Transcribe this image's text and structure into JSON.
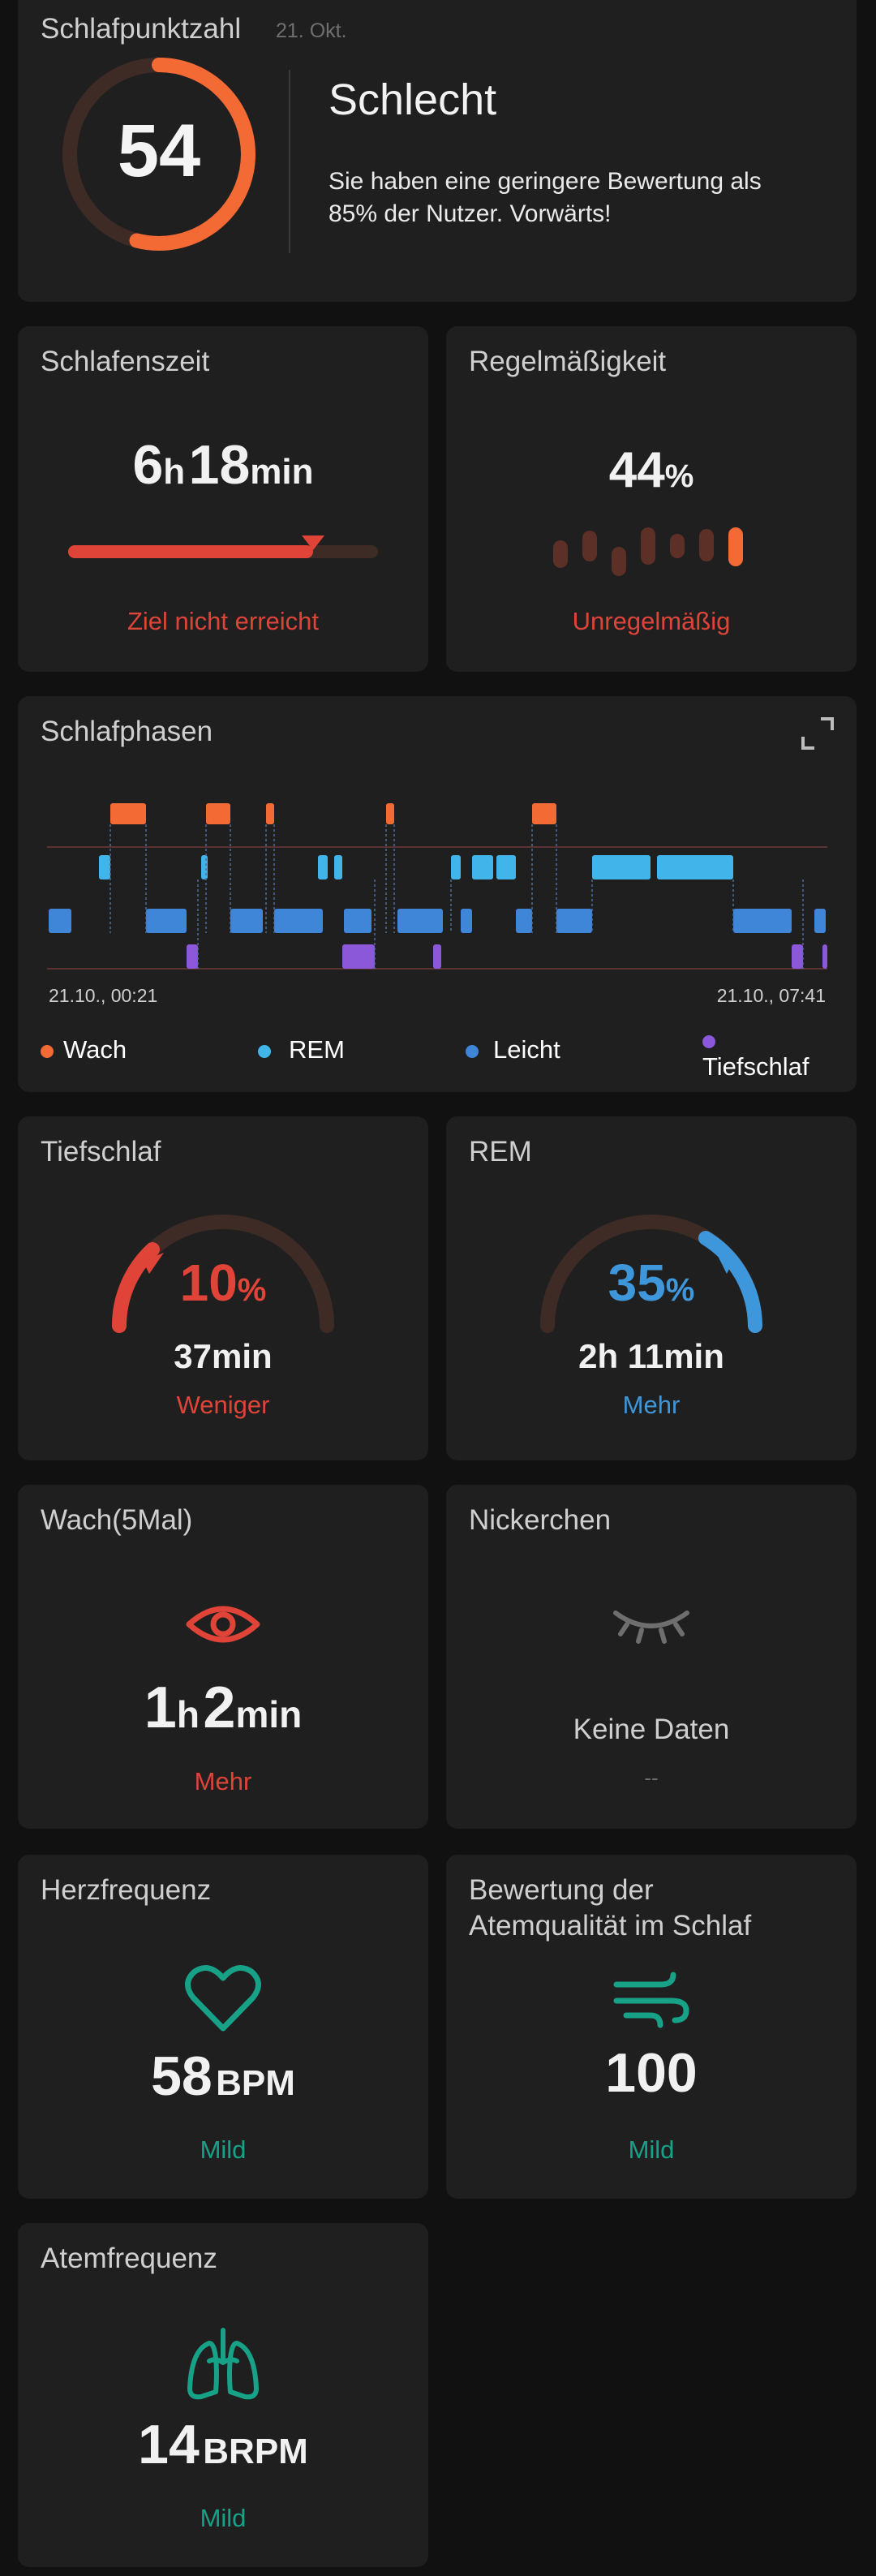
{
  "score": {
    "title": "Schlafpunktzahl",
    "date": "21. Okt.",
    "value": "54",
    "fraction": 0.54,
    "rating": "Schlecht",
    "description_line1": "Sie haben eine geringere Bewertung als",
    "description_line2": "85% der Nutzer. Vorwärts!"
  },
  "sleep_time": {
    "title": "Schlafenszeit",
    "hours": "6",
    "hours_unit": "h",
    "minutes": "18",
    "minutes_unit": "min",
    "status": "Ziel nicht erreicht",
    "progress_fraction": 0.79
  },
  "regularity": {
    "title": "Regelmäßigkeit",
    "value": "44",
    "unit": "%",
    "status": "Unregelmäßig"
  },
  "phases": {
    "title": "Schlafphasen",
    "start_label": "21.10., 00:21",
    "end_label": "21.10., 07:41",
    "legend": [
      {
        "label": "Wach",
        "color": "#f46a35"
      },
      {
        "label": "REM",
        "color": "#41b4ea"
      },
      {
        "label": "Leicht",
        "color": "#3f86d8"
      },
      {
        "label": "Tiefschlaf",
        "color": "#8a58d8"
      }
    ]
  },
  "deep_sleep": {
    "title": "Tiefschlaf",
    "percent": "10",
    "percent_unit": "%",
    "duration": "37min",
    "status": "Weniger"
  },
  "rem": {
    "title": "REM",
    "percent": "35",
    "percent_unit": "%",
    "duration": "2h 11min",
    "status": "Mehr"
  },
  "awake": {
    "title": "Wach(5Mal)",
    "hours": "1",
    "hours_unit": "h",
    "minutes": "2",
    "minutes_unit": "min",
    "status": "Mehr"
  },
  "nap": {
    "title": "Nickerchen",
    "no_data": "Keine Daten",
    "placeholder": "--"
  },
  "heart_rate": {
    "title": "Herzfrequenz",
    "value": "58",
    "unit": "BPM",
    "status": "Mild"
  },
  "breathing_quality": {
    "title_line1": "Bewertung der",
    "title_line2": "Atemqualität im Schlaf",
    "value": "100",
    "status": "Mild"
  },
  "respiratory_rate": {
    "title": "Atemfrequenz",
    "value": "14",
    "unit": "BRPM",
    "status": "Mild"
  },
  "colors": {
    "card": "#1f1f1f",
    "red": "#e04438",
    "orange": "#f46a35",
    "blue": "#3f97db",
    "green": "#17a287"
  }
}
